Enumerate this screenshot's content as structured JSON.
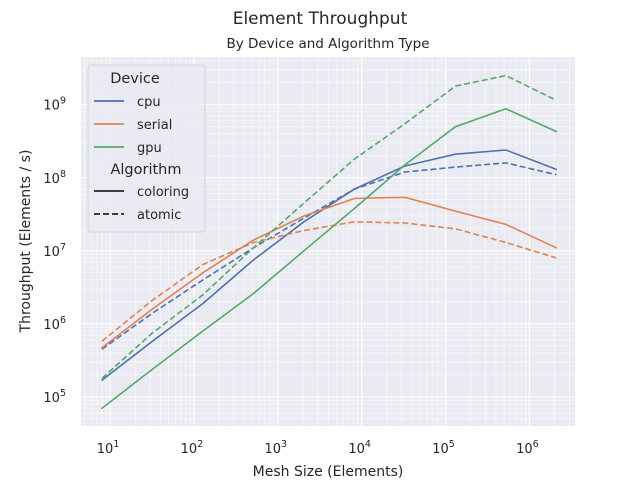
{
  "chart_data": {
    "type": "line",
    "title": "Element Throughput",
    "subtitle": "By Device and Algorithm Type",
    "xlabel": "Mesh Size (Elements)",
    "ylabel": "Throughput (Elements / s)",
    "x_scale": "log",
    "y_scale": "log",
    "xlim": [
      4.5,
      3500000
    ],
    "ylim": [
      40000,
      4500000000
    ],
    "x_ticks": [
      {
        "value": 10,
        "base": "10",
        "exp": "1"
      },
      {
        "value": 100,
        "base": "10",
        "exp": "2"
      },
      {
        "value": 1000,
        "base": "10",
        "exp": "3"
      },
      {
        "value": 10000,
        "base": "10",
        "exp": "4"
      },
      {
        "value": 100000,
        "base": "10",
        "exp": "5"
      },
      {
        "value": 1000000,
        "base": "10",
        "exp": "6"
      }
    ],
    "y_ticks": [
      {
        "value": 100000,
        "base": "10",
        "exp": "5"
      },
      {
        "value": 1000000,
        "base": "10",
        "exp": "6"
      },
      {
        "value": 10000000,
        "base": "10",
        "exp": "7"
      },
      {
        "value": 100000000,
        "base": "10",
        "exp": "8"
      },
      {
        "value": 1000000000,
        "base": "10",
        "exp": "9"
      }
    ],
    "grid": true,
    "legend": {
      "placement": "top-left",
      "device_title": "Device",
      "algorithm_title": "Algorithm",
      "devices": [
        {
          "name": "cpu",
          "color": "#4c72b0"
        },
        {
          "name": "serial",
          "color": "#dd8452"
        },
        {
          "name": "gpu",
          "color": "#55a868"
        }
      ],
      "algorithms": [
        {
          "name": "coloring",
          "style": "solid"
        },
        {
          "name": "atomic",
          "style": "dashed"
        }
      ]
    },
    "x": [
      8,
      32,
      128,
      512,
      2048,
      8192,
      32768,
      131072,
      524288,
      2097152
    ],
    "series": [
      {
        "device": "cpu",
        "algorithm": "coloring",
        "color": "#4c72b0",
        "style": "solid",
        "values": [
          170000,
          580000,
          1900000,
          7500000,
          25000000,
          70000000,
          145000000,
          210000000,
          240000000,
          130000000
        ]
      },
      {
        "device": "cpu",
        "algorithm": "atomic",
        "color": "#4c72b0",
        "style": "dashed",
        "values": [
          450000,
          1400000,
          4000000,
          11000000,
          28000000,
          70000000,
          120000000,
          140000000,
          160000000,
          110000000
        ]
      },
      {
        "device": "serial",
        "algorithm": "coloring",
        "color": "#dd8452",
        "style": "solid",
        "values": [
          470000,
          1600000,
          5000000,
          14000000,
          30000000,
          52000000,
          54000000,
          35000000,
          23000000,
          11000000
        ]
      },
      {
        "device": "serial",
        "algorithm": "atomic",
        "color": "#dd8452",
        "style": "dashed",
        "values": [
          580000,
          2100000,
          6500000,
          13000000,
          19000000,
          25000000,
          24000000,
          20000000,
          13000000,
          8000000
        ]
      },
      {
        "device": "gpu",
        "algorithm": "coloring",
        "color": "#55a868",
        "style": "solid",
        "values": [
          70000,
          240000,
          800000,
          2600000,
          10000000,
          38000000,
          150000000,
          500000000,
          880000000,
          430000000
        ]
      },
      {
        "device": "gpu",
        "algorithm": "atomic",
        "color": "#55a868",
        "style": "dashed",
        "values": [
          180000,
          750000,
          2500000,
          11000000,
          45000000,
          180000000,
          550000000,
          1800000000,
          2500000000,
          1150000000
        ]
      }
    ]
  }
}
